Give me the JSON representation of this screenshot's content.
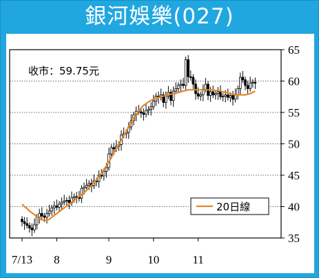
{
  "chart_data": {
    "type": "candlestick",
    "title": "銀河娛樂(027)",
    "annotation": "收市：59.75元",
    "legend": "20日線",
    "legend_position": "bottom-right",
    "grid": true,
    "ylim": [
      35,
      65
    ],
    "y_ticks": [
      35,
      40,
      45,
      50,
      55,
      60,
      65
    ],
    "x_tick_labels": [
      "7/13",
      "8",
      "9",
      "10",
      "11"
    ],
    "x_tick_index": [
      0,
      14,
      35,
      53,
      71
    ],
    "close_series": [
      37.6,
      37.3,
      37.0,
      36.6,
      36.3,
      37.1,
      38.3,
      38.9,
      38.5,
      38.3,
      38.9,
      39.3,
      39.8,
      40.1,
      39.9,
      40.4,
      40.7,
      40.9,
      41.0,
      40.6,
      41.4,
      41.6,
      41.5,
      41.3,
      42.9,
      43.1,
      43.4,
      43.7,
      43.3,
      44.1,
      44.0,
      45.0,
      44.9,
      45.6,
      46.2,
      48.4,
      49.4,
      49.2,
      49.6,
      49.9,
      51.4,
      51.6,
      51.8,
      52.7,
      53.7,
      54.6,
      55.2,
      55.1,
      54.9,
      54.7,
      55.3,
      55.5,
      55.9,
      56.8,
      57.6,
      57.4,
      57.8,
      56.6,
      57.6,
      58.2,
      56.9,
      58.4,
      58.8,
      59.3,
      59.5,
      59.3,
      63.4,
      60.7,
      60.6,
      59.5,
      58.0,
      57.6,
      57.8,
      58.7,
      59.5,
      57.7,
      58.3,
      57.8,
      58.0,
      58.3,
      57.5,
      57.6,
      57.8,
      57.4,
      57.7,
      57.1,
      57.8,
      58.8,
      60.6,
      60.2,
      59.3,
      58.8,
      59.7,
      59.8,
      59.75
    ],
    "ma20_series": [
      40.4,
      40.0,
      39.7,
      39.3,
      39.0,
      38.7,
      38.4,
      38.1,
      37.9,
      37.8,
      37.8,
      38.0,
      38.3,
      38.6,
      38.9,
      39.2,
      39.5,
      39.8,
      40.1,
      40.4,
      40.7,
      41.0,
      41.3,
      41.6,
      41.9,
      42.2,
      42.6,
      43.0,
      43.4,
      43.8,
      44.3,
      44.8,
      45.3,
      45.9,
      46.5,
      47.1,
      47.8,
      48.5,
      49.2,
      49.9,
      50.6,
      51.3,
      52.0,
      52.7,
      53.4,
      54.1,
      54.7,
      55.2,
      55.7,
      56.1,
      56.4,
      56.7,
      56.9,
      57.1,
      57.3,
      57.4,
      57.5,
      57.6,
      57.7,
      57.8,
      57.9,
      58.0,
      58.1,
      58.2,
      58.3,
      58.4,
      58.5,
      58.6,
      58.6,
      58.6,
      58.6,
      58.6,
      58.6,
      58.6,
      58.6,
      58.6,
      58.6,
      58.6,
      58.5,
      58.5,
      58.4,
      58.3,
      58.2,
      58.1,
      58.0,
      57.9,
      57.8,
      57.8,
      57.8,
      57.8,
      57.8,
      57.9,
      58.0,
      58.2,
      58.4
    ],
    "colors": {
      "background": "#21a7e0",
      "candle": "#000000",
      "ma20": "#e2862a",
      "grid": "#666666"
    }
  }
}
